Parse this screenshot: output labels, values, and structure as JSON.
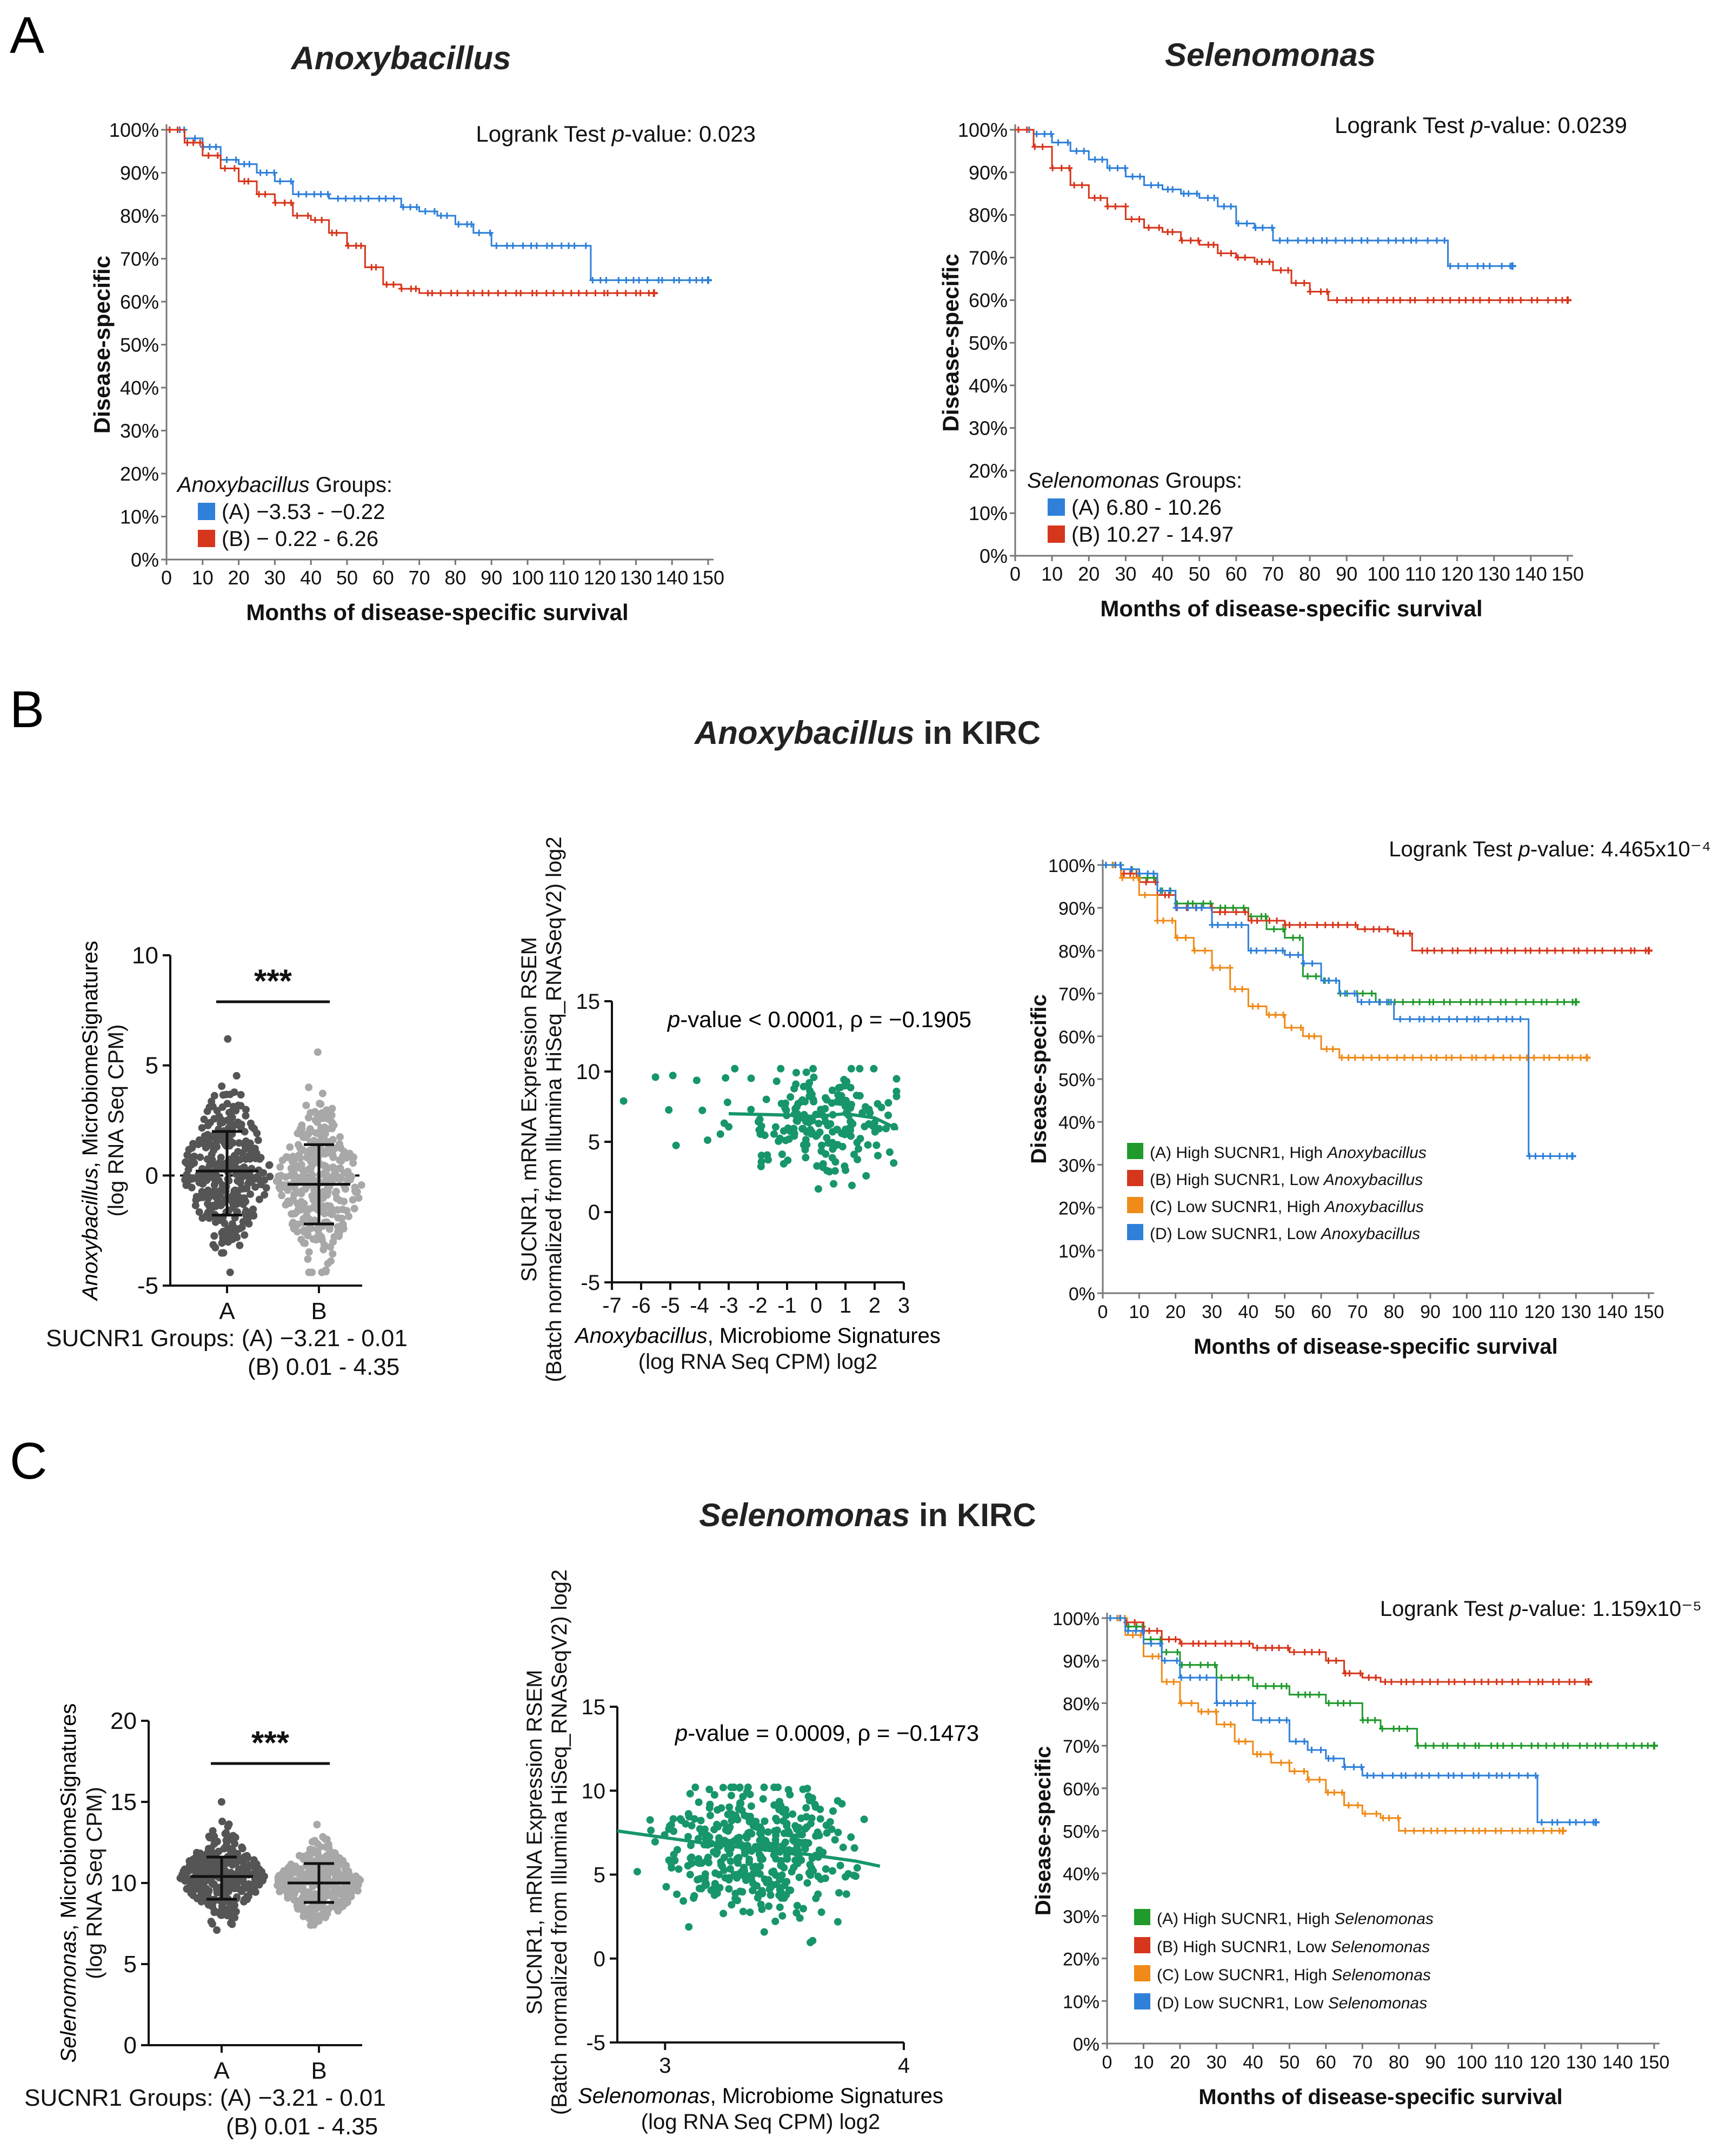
{
  "panels": {
    "a": "A",
    "b": "B",
    "c": "C"
  },
  "titles": {
    "anoxy": "Anoxybacillus",
    "selen": "Selenomonas",
    "b": "Anoxybacillus in KIRC",
    "c": "Selenomonas in KIRC"
  },
  "colors": {
    "blue": "#2f80d9",
    "red": "#d6361c",
    "green": "#1f9a2b",
    "orange": "#f08a18",
    "teal": "#17956b",
    "dark_gray": "#555555",
    "light_gray": "#a8a8a8"
  },
  "km_axes": {
    "ylabel": "Disease-specific",
    "xlabel": "Months of disease-specific survival",
    "yticks": [
      "0%",
      "10%",
      "20%",
      "30%",
      "40%",
      "50%",
      "60%",
      "70%",
      "80%",
      "90%",
      "100%"
    ],
    "xticks": [
      "0",
      "10",
      "20",
      "30",
      "40",
      "50",
      "60",
      "70",
      "80",
      "90",
      "100",
      "110",
      "120",
      "130",
      "140",
      "150"
    ]
  },
  "box_axes": {
    "sig": "***",
    "groups_line1": "SUCNR1 Groups: (A) −3.21 - 0.01",
    "groups_line2": "(B) 0.01 - 4.35",
    "cat_a": "A",
    "cat_b": "B"
  },
  "chart_data": [
    {
      "id": "A1",
      "type": "line",
      "title": "Anoxybacillus",
      "annotation": "Logrank Test p-value: 0.023",
      "xlabel": "Months of disease-specific survival",
      "ylabel": "Disease-specific",
      "xlim": [
        0,
        150
      ],
      "ylim": [
        0,
        100
      ],
      "legend_title": "Anoxybacillus Groups:",
      "series": [
        {
          "name": "(A) −3.53 - −0.22",
          "color": "#2f80d9",
          "x": [
            0,
            5,
            10,
            15,
            20,
            25,
            30,
            35,
            40,
            45,
            50,
            55,
            60,
            65,
            70,
            75,
            80,
            85,
            90,
            95,
            100,
            105,
            110,
            115,
            117,
            117.5,
            125,
            135,
            150
          ],
          "y": [
            100,
            98,
            96,
            93,
            92,
            90,
            88,
            85,
            85,
            84,
            84,
            84,
            84,
            82,
            81,
            80,
            78,
            76,
            73,
            73,
            73,
            73,
            73,
            73,
            73,
            65,
            65,
            65,
            65
          ]
        },
        {
          "name": "(B) − 0.22 - 6.26",
          "color": "#d6361c",
          "x": [
            0,
            5,
            10,
            15,
            20,
            25,
            30,
            35,
            40,
            45,
            50,
            55,
            60,
            65,
            70,
            75,
            80,
            90,
            100,
            110,
            120,
            130,
            135
          ],
          "y": [
            100,
            97,
            94,
            91,
            88,
            85,
            83,
            80,
            79,
            76,
            73,
            68,
            64,
            63,
            62,
            62,
            62,
            62,
            62,
            62,
            62,
            62,
            62
          ]
        }
      ]
    },
    {
      "id": "A2",
      "type": "line",
      "title": "Selenomonas",
      "annotation": "Logrank Test p-value: 0.0239",
      "xlabel": "Months of disease-specific survival",
      "ylabel": "Disease-specific",
      "xlim": [
        0,
        150
      ],
      "ylim": [
        0,
        100
      ],
      "legend_title": "Selenomonas Groups:",
      "series": [
        {
          "name": "(A) 6.80 - 10.26",
          "color": "#2f80d9",
          "x": [
            0,
            5,
            10,
            15,
            20,
            25,
            30,
            35,
            40,
            45,
            50,
            55,
            60,
            65,
            70,
            80,
            90,
            100,
            110,
            117,
            117.5,
            125,
            135
          ],
          "y": [
            100,
            99,
            97,
            95,
            93,
            91,
            89,
            87,
            86,
            85,
            84,
            82,
            78,
            77,
            74,
            74,
            74,
            74,
            74,
            74,
            68,
            68,
            68
          ]
        },
        {
          "name": "(B) 10.27 - 14.97",
          "color": "#d6361c",
          "x": [
            0,
            5,
            10,
            15,
            20,
            25,
            30,
            35,
            40,
            45,
            50,
            55,
            60,
            65,
            70,
            75,
            80,
            85,
            90,
            100,
            110,
            120,
            130,
            150
          ],
          "y": [
            100,
            96,
            91,
            87,
            84,
            82,
            79,
            77,
            76,
            74,
            73,
            71,
            70,
            69,
            67,
            64,
            62,
            60,
            60,
            60,
            60,
            60,
            60,
            60
          ]
        }
      ]
    },
    {
      "id": "B1",
      "type": "scatter",
      "ylabel_line1": "Anoxybacillus, MicrobiomeSignatures",
      "ylabel_line2": "(log RNA Seq CPM)",
      "ylim": [
        -5,
        10
      ],
      "yticks": [
        "-5",
        "0",
        "5",
        "10"
      ],
      "categories": [
        "A",
        "B"
      ],
      "summary": [
        {
          "name": "A",
          "mean": 0.2,
          "sd_low": -1.8,
          "sd_high": 2.0,
          "max": 6.2
        },
        {
          "name": "B",
          "mean": -0.4,
          "sd_low": -2.2,
          "sd_high": 1.4,
          "max": 5.6
        }
      ],
      "significance": "***"
    },
    {
      "id": "B2",
      "type": "scatter",
      "annotation": "p-value < 0.0001, ρ = −0.1905",
      "ylabel_line1": "SUCNR1, mRNA Expression RSEM",
      "ylabel_line2": "(Batch normalized from Illumina HiSeq_RNASeqV2) log2",
      "xlabel_line1": "Anoxybacillus, Microbiome Signatures",
      "xlabel_line2": "(log RNA Seq CPM) log2",
      "xlim": [
        -7,
        3
      ],
      "ylim": [
        -5,
        15
      ],
      "xticks": [
        "-7",
        "-6",
        "-5",
        "-4",
        "-3",
        "-2",
        "-1",
        "0",
        "1",
        "2",
        "3"
      ],
      "yticks": [
        "-5",
        "0",
        "5",
        "10",
        "15"
      ],
      "trend": {
        "x": [
          -3,
          -1,
          0,
          1,
          2,
          2.8
        ],
        "y": [
          7.0,
          6.9,
          6.8,
          7.0,
          6.7,
          5.9
        ]
      }
    },
    {
      "id": "B3",
      "type": "line",
      "annotation": "Logrank Test p-value: 4.465x10⁻⁴",
      "xlabel": "Months of disease-specific survival",
      "ylabel": "Disease-specific",
      "xlim": [
        0,
        150
      ],
      "ylim": [
        0,
        100
      ],
      "series": [
        {
          "name": "(A) High SUCNR1, High Anoxybacillus",
          "color": "#1f9a2b",
          "x": [
            0,
            5,
            10,
            15,
            20,
            30,
            40,
            45,
            50,
            55,
            60,
            65,
            70,
            75,
            80,
            90,
            100,
            110,
            120,
            130
          ],
          "y": [
            100,
            99,
            97,
            94,
            91,
            90,
            88,
            85,
            83,
            74,
            73,
            70,
            70,
            68,
            68,
            68,
            68,
            68,
            68,
            68
          ]
        },
        {
          "name": "(B) High SUCNR1, Low Anoxybacillus",
          "color": "#d6361c",
          "x": [
            0,
            5,
            10,
            15,
            20,
            30,
            40,
            50,
            60,
            70,
            80,
            85,
            90,
            100,
            110,
            120,
            130,
            140,
            150
          ],
          "y": [
            100,
            98,
            96,
            93,
            90,
            89,
            87,
            86,
            86,
            85,
            84,
            80,
            80,
            80,
            80,
            80,
            80,
            80,
            80
          ]
        },
        {
          "name": "(C) Low SUCNR1, High Anoxybacillus",
          "color": "#f08a18",
          "x": [
            0,
            5,
            10,
            15,
            20,
            25,
            30,
            35,
            40,
            45,
            50,
            55,
            60,
            65,
            70,
            80,
            90,
            100,
            110,
            120,
            133
          ],
          "y": [
            100,
            97,
            93,
            87,
            83,
            80,
            76,
            71,
            67,
            65,
            62,
            60,
            57,
            55,
            55,
            55,
            55,
            55,
            55,
            55,
            55
          ]
        },
        {
          "name": "(D) Low SUCNR1, Low Anoxybacillus",
          "color": "#2f80d9",
          "x": [
            0,
            5,
            10,
            15,
            20,
            30,
            40,
            50,
            55,
            60,
            65,
            70,
            80,
            90,
            100,
            110,
            116,
            117,
            129
          ],
          "y": [
            100,
            99,
            98,
            94,
            90,
            86,
            80,
            79,
            77,
            73,
            70,
            68,
            64,
            64,
            64,
            64,
            64,
            32,
            32
          ]
        }
      ]
    },
    {
      "id": "C1",
      "type": "scatter",
      "ylabel_line1": "Selenomonas, MicrobiomeSignatures",
      "ylabel_line2": "(log RNA Seq CPM)",
      "ylim": [
        0,
        20
      ],
      "yticks": [
        "0",
        "5",
        "10",
        "15",
        "20"
      ],
      "categories": [
        "A",
        "B"
      ],
      "summary": [
        {
          "name": "A",
          "mean": 10.4,
          "sd_low": 9.0,
          "sd_high": 11.6,
          "max": 15.0
        },
        {
          "name": "B",
          "mean": 10.0,
          "sd_low": 8.8,
          "sd_high": 11.2,
          "max": 13.6
        }
      ],
      "significance": "***"
    },
    {
      "id": "C2",
      "type": "scatter",
      "annotation": "p-value = 0.0009, ρ = −0.1473",
      "ylabel_line1": "SUCNR1, mRNA Expression RSEM",
      "ylabel_line2": "(Batch normalized from Illumina HiSeq_RNASeqV2) log2",
      "xlabel_line1": "Selenomonas, Microbiome Signatures",
      "xlabel_line2": "(log RNA Seq CPM) log2",
      "xlim": [
        2.8,
        4.0
      ],
      "ylim": [
        -5,
        15
      ],
      "xticks": [
        "3",
        "4"
      ],
      "yticks": [
        "-5",
        "0",
        "5",
        "10",
        "15"
      ],
      "trend": {
        "x": [
          2.8,
          3.0,
          3.2,
          3.4,
          3.6,
          3.8,
          3.9
        ],
        "y": [
          7.6,
          7.2,
          6.8,
          6.5,
          6.2,
          5.8,
          5.5
        ]
      }
    },
    {
      "id": "C3",
      "type": "line",
      "annotation": "Logrank Test p-value: 1.159x10⁻⁵",
      "xlabel": "Months of disease-specific survival",
      "ylabel": "Disease-specific",
      "xlim": [
        0,
        150
      ],
      "ylim": [
        0,
        100
      ],
      "series": [
        {
          "name": "(A) High SUCNR1, High Selenomonas",
          "color": "#1f9a2b",
          "x": [
            0,
            5,
            10,
            15,
            20,
            30,
            40,
            50,
            60,
            70,
            75,
            80,
            85,
            90,
            100,
            110,
            120,
            130,
            140,
            150
          ],
          "y": [
            100,
            98,
            95,
            92,
            89,
            86,
            84,
            82,
            80,
            76,
            74,
            74,
            70,
            70,
            70,
            70,
            70,
            70,
            70,
            70
          ]
        },
        {
          "name": "(B) High SUCNR1, Low Selenomonas",
          "color": "#d6361c",
          "x": [
            0,
            5,
            10,
            15,
            20,
            30,
            40,
            50,
            60,
            65,
            70,
            75,
            80,
            90,
            100,
            110,
            120,
            132
          ],
          "y": [
            100,
            99,
            97,
            95,
            94,
            94,
            93,
            92,
            90,
            87,
            86,
            85,
            85,
            85,
            85,
            85,
            85,
            85
          ]
        },
        {
          "name": "(C) Low SUCNR1, High Selenomonas",
          "color": "#f08a18",
          "x": [
            0,
            5,
            10,
            15,
            20,
            25,
            30,
            35,
            40,
            45,
            50,
            55,
            60,
            65,
            70,
            75,
            80,
            90,
            100,
            110,
            125
          ],
          "y": [
            100,
            96,
            91,
            85,
            80,
            78,
            75,
            71,
            68,
            66,
            64,
            62,
            59,
            56,
            54,
            53,
            50,
            50,
            50,
            50,
            50
          ]
        },
        {
          "name": "(D) Low SUCNR1, Low Selenomonas",
          "color": "#2f80d9",
          "x": [
            0,
            5,
            10,
            15,
            20,
            30,
            40,
            50,
            55,
            60,
            65,
            70,
            80,
            90,
            100,
            110,
            117,
            118,
            134
          ],
          "y": [
            100,
            97,
            94,
            90,
            86,
            80,
            76,
            71,
            69,
            67,
            65,
            63,
            63,
            63,
            63,
            63,
            63,
            52,
            52
          ]
        }
      ]
    }
  ]
}
